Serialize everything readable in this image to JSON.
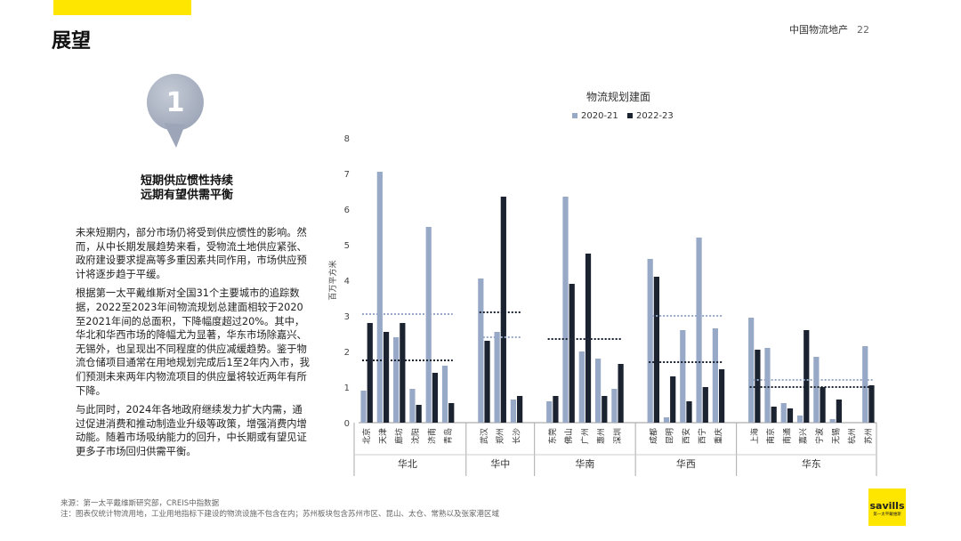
{
  "header": {
    "title": "展望",
    "brand": "中国物流地产",
    "page_number": "22"
  },
  "badge": {
    "number": "1"
  },
  "subtitle": {
    "line1": "短期供应惯性持续",
    "line2": "远期有望供需平衡"
  },
  "paragraphs": [
    "未来短期内，部分市场仍将受到供应惯性的影响。然而，从中长期发展趋势来看，受物流土地供应紧张、政府建设要求提高等多重因素共同作用，市场供应预计将逐步趋于平缓。",
    "根据第一太平戴维斯对全国31个主要城市的追踪数据，2022至2023年间物流规划总建面相较于2020至2021年间的总面积，下降幅度超过20%。其中，华北和华西市场的降幅尤为显著，华东市场除嘉兴、无锡外，也呈现出不同程度的供应减缓趋势。鉴于物流仓储项目通常在用地规划完成后1至2年内入市，我们预测未来两年内物流项目的供应量将较近两年有所下降。",
    "与此同时，2024年各地政府继续发力扩大内需，通过促进消费和推动制造业升级等政策，增强消费内增动能。随着市场吸纳能力的回升，中长期或有望见证更多子市场回归供需平衡。"
  ],
  "footer": {
    "source": "来源：第一太平戴维斯研究部，CREIS中指数据",
    "note": "注：图表仅统计物流用地，工业用地指标下建设的物流设施不包含在内；苏州板块包含苏州市区、昆山、太仓、常熟以及张家港区域"
  },
  "logo": {
    "brand": "savills",
    "sub": "第一太平戴维斯"
  },
  "colors": {
    "series1": "#98A9C7",
    "series2": "#1B2230",
    "accent": "#FFE600"
  },
  "chart_data": {
    "type": "bar",
    "title": "物流规划建面",
    "ylabel": "百万平方米",
    "ylim": [
      0,
      8
    ],
    "yticks": [
      "0",
      "1",
      "2",
      "3",
      "4",
      "5",
      "6",
      "7",
      "8"
    ],
    "legend_position": "top",
    "series": [
      {
        "name": "2020-21",
        "color": "#98A9C7"
      },
      {
        "name": "2022-23",
        "color": "#1B2230"
      }
    ],
    "regions": [
      {
        "name": "华北",
        "cities": [
          "北京",
          "天津",
          "廊坊",
          "沈阳",
          "济南",
          "青岛"
        ],
        "v2021": [
          0.9,
          7.05,
          2.4,
          0.95,
          5.5,
          1.6
        ],
        "v2223": [
          2.8,
          2.55,
          2.8,
          0.5,
          1.4,
          0.55
        ],
        "avg2021": 3.05,
        "avg2223": 1.75
      },
      {
        "name": "华中",
        "cities": [
          "武汉",
          "郑州",
          "长沙"
        ],
        "v2021": [
          4.05,
          2.55,
          0.65
        ],
        "v2223": [
          2.3,
          6.35,
          0.75
        ],
        "avg2021": 2.4,
        "avg2223": 3.1
      },
      {
        "name": "华南",
        "cities": [
          "东莞",
          "佛山",
          "广州",
          "惠州",
          "深圳"
        ],
        "v2021": [
          0.6,
          6.35,
          2.0,
          1.8,
          0.95
        ],
        "v2223": [
          0.75,
          3.9,
          4.75,
          0.75,
          1.65
        ],
        "avg2021": 2.35,
        "avg2223": 2.35
      },
      {
        "name": "华西",
        "cities": [
          "成都",
          "昆明",
          "西安",
          "西宁",
          "重庆"
        ],
        "v2021": [
          4.6,
          0.15,
          2.6,
          5.2,
          2.65
        ],
        "v2223": [
          4.1,
          1.3,
          0.6,
          1.0,
          1.5
        ],
        "avg2021": 3.0,
        "avg2223": 1.7
      },
      {
        "name": "华东",
        "cities": [
          "上海",
          "南京",
          "南通",
          "嘉兴",
          "宁波",
          "无锡",
          "杭州",
          "苏州"
        ],
        "v2021": [
          2.95,
          2.1,
          0.55,
          0.2,
          1.85,
          0.1,
          0.0,
          2.15
        ],
        "v2223": [
          2.05,
          0.45,
          0.4,
          2.6,
          1.0,
          0.65,
          0.0,
          1.05
        ],
        "avg2021": 1.2,
        "avg2223": 1.0
      }
    ]
  }
}
